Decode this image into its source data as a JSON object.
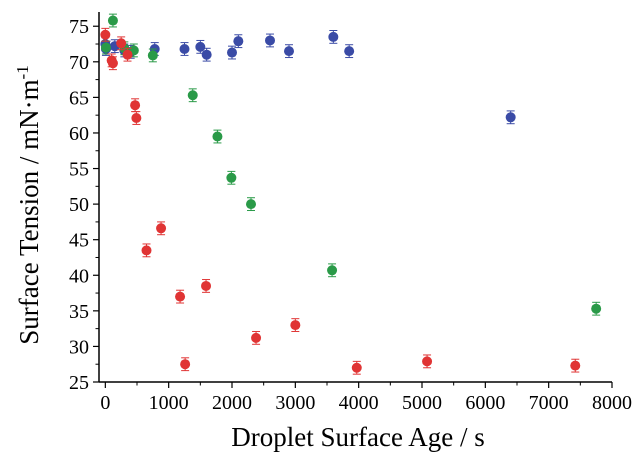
{
  "chart_data": {
    "type": "scatter",
    "title": "",
    "xlabel": "Droplet Surface Age / s",
    "ylabel_parts": {
      "base": "Surface Tension / mN·m",
      "superscript": "-1"
    },
    "xlim": [
      -100,
      8000
    ],
    "ylim": [
      25,
      77
    ],
    "xticks": [
      0,
      1000,
      2000,
      3000,
      4000,
      5000,
      6000,
      7000,
      8000
    ],
    "xtick_labels": [
      "0",
      "1000",
      "2000",
      "3000",
      "4000",
      "5000",
      "6000",
      "7000",
      "8000"
    ],
    "yticks": [
      25,
      30,
      35,
      40,
      45,
      50,
      55,
      60,
      65,
      70,
      75
    ],
    "ytick_labels": [
      "25",
      "30",
      "35",
      "40",
      "45",
      "50",
      "55",
      "60",
      "65",
      "70",
      "75"
    ],
    "grid": false,
    "error_bar": 0.9,
    "series": [
      {
        "color": "#3a4ba6",
        "points": [
          [
            0,
            72.5
          ],
          [
            10,
            71.8
          ],
          [
            20,
            72.0
          ],
          [
            150,
            72.2
          ],
          [
            300,
            71.6
          ],
          [
            400,
            71.4
          ],
          [
            780,
            71.8
          ],
          [
            1250,
            71.8
          ],
          [
            1500,
            72.1
          ],
          [
            1600,
            71.0
          ],
          [
            2000,
            71.3
          ],
          [
            2100,
            72.9
          ],
          [
            2600,
            73.0
          ],
          [
            2900,
            71.5
          ],
          [
            3600,
            73.5
          ],
          [
            3850,
            71.5
          ],
          [
            6400,
            62.2
          ]
        ]
      },
      {
        "color": "#2a9a48",
        "points": [
          [
            10,
            72.0
          ],
          [
            120,
            75.8
          ],
          [
            300,
            71.9
          ],
          [
            450,
            71.6
          ],
          [
            750,
            70.9
          ],
          [
            1380,
            65.3
          ],
          [
            1770,
            59.5
          ],
          [
            1990,
            53.7
          ],
          [
            2300,
            50.0
          ],
          [
            3580,
            40.7
          ],
          [
            7750,
            35.3
          ]
        ]
      },
      {
        "color": "#e03434",
        "points": [
          [
            0,
            73.8
          ],
          [
            100,
            70.2
          ],
          [
            120,
            69.8
          ],
          [
            250,
            72.6
          ],
          [
            350,
            71.0
          ],
          [
            470,
            63.9
          ],
          [
            490,
            62.1
          ],
          [
            650,
            43.5
          ],
          [
            880,
            46.6
          ],
          [
            1180,
            37.0
          ],
          [
            1260,
            27.5
          ],
          [
            1590,
            38.5
          ],
          [
            2380,
            31.2
          ],
          [
            3000,
            33.0
          ],
          [
            3970,
            27.0
          ],
          [
            5080,
            27.9
          ],
          [
            7420,
            27.3
          ]
        ]
      }
    ]
  }
}
